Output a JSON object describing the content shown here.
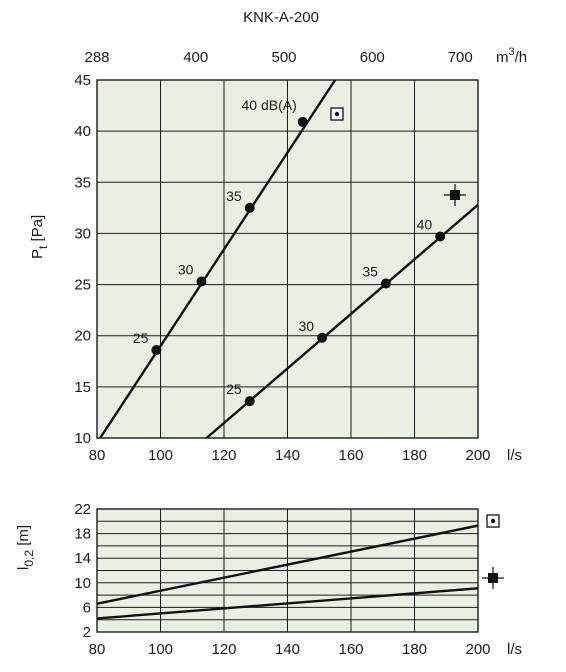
{
  "chart_data": [
    {
      "type": "line",
      "title": "KNK-A-200",
      "xlabel": "l/s",
      "ylabel": "P_t [Pa]",
      "ylabel_main": "P",
      "ylabel_sub": "t",
      "ylabel_unit": "[Pa]",
      "x_ticks": [
        80,
        100,
        120,
        140,
        160,
        180,
        200
      ],
      "y_ticks": [
        10,
        15,
        20,
        25,
        30,
        35,
        40,
        45
      ],
      "xlim": [
        80,
        200
      ],
      "ylim": [
        10,
        45
      ],
      "grid": true,
      "top_axis": {
        "label": "m³/h",
        "label_base": "m",
        "label_exp": "3",
        "label_tail": "/h",
        "ticks": [
          {
            "label": "288",
            "x": 80
          },
          {
            "label": "400",
            "x": 111.1
          },
          {
            "label": "500",
            "x": 138.9
          },
          {
            "label": "600",
            "x": 166.7
          },
          {
            "label": "700",
            "x": 194.4
          }
        ]
      },
      "series": [
        {
          "marker": "dotted-square",
          "line": [
            {
              "x": 81.0,
              "y": 10
            },
            {
              "x": 155.0,
              "y": 45
            }
          ],
          "points": [
            {
              "x": 98.7,
              "y": 18.6,
              "label": "25"
            },
            {
              "x": 112.9,
              "y": 25.3,
              "label": "30"
            },
            {
              "x": 128.1,
              "y": 32.5,
              "label": "35"
            },
            {
              "x": 144.8,
              "y": 40.9,
              "label": "40 dB(A)"
            }
          ]
        },
        {
          "marker": "filled-square-cross",
          "line": [
            {
              "x": 114.5,
              "y": 10
            },
            {
              "x": 200,
              "y": 32.8
            }
          ],
          "points": [
            {
              "x": 128.1,
              "y": 13.6,
              "label": "25"
            },
            {
              "x": 150.9,
              "y": 19.8,
              "label": "30"
            },
            {
              "x": 171.0,
              "y": 25.1,
              "label": "35"
            },
            {
              "x": 188.1,
              "y": 29.7,
              "label": "40"
            }
          ]
        }
      ]
    },
    {
      "type": "line",
      "xlabel": "l/s",
      "ylabel": "l_0,2 [m]",
      "ylabel_main": "l",
      "ylabel_sub": "0,2",
      "ylabel_unit": "[m]",
      "x_ticks": [
        80,
        100,
        120,
        140,
        160,
        180,
        200
      ],
      "y_ticks": [
        2,
        4,
        6,
        8,
        10,
        12,
        14,
        16,
        18,
        20,
        22
      ],
      "y_tick_labels": [
        "2",
        "",
        "6",
        "",
        "10",
        "",
        "14",
        "",
        "18",
        "",
        "22"
      ],
      "xlim": [
        80,
        200
      ],
      "ylim": [
        2,
        22
      ],
      "grid": true,
      "series": [
        {
          "marker": "dotted-square",
          "line": [
            {
              "x": 80,
              "y": 6.6
            },
            {
              "x": 200,
              "y": 19.3
            }
          ]
        },
        {
          "marker": "filled-square-cross",
          "line": [
            {
              "x": 80,
              "y": 4.2
            },
            {
              "x": 200,
              "y": 9.1
            }
          ]
        }
      ]
    }
  ]
}
